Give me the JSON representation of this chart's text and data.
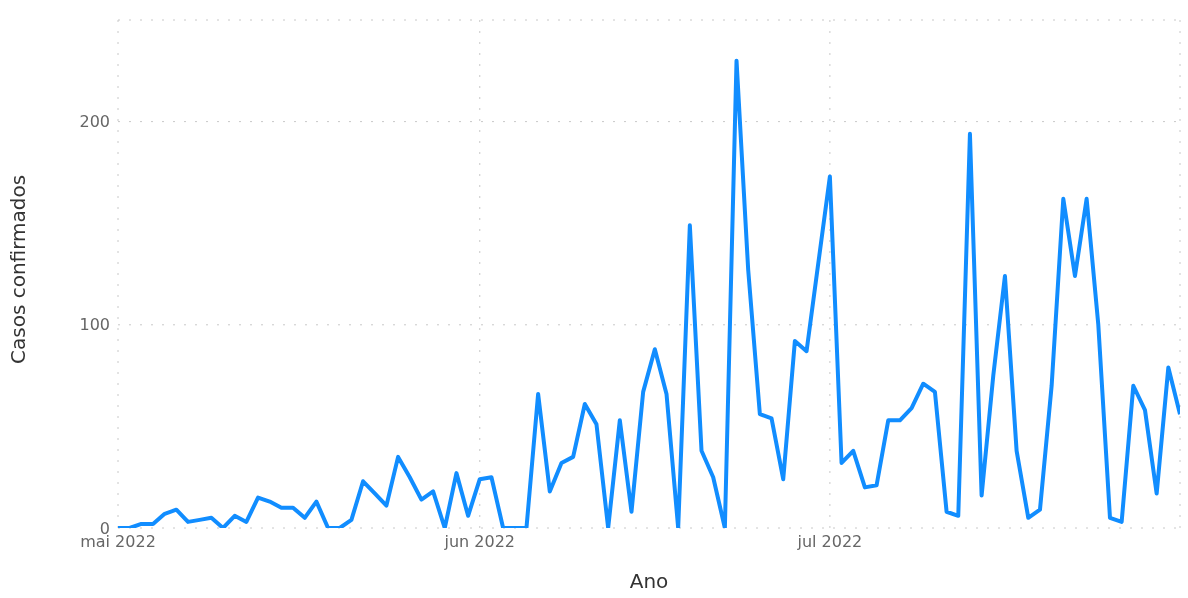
{
  "chart_data": {
    "type": "line",
    "xlabel": "Ano",
    "ylabel": "Casos confirmados",
    "x": [
      "2022-05-01",
      "2022-05-02",
      "2022-05-03",
      "2022-05-04",
      "2022-05-05",
      "2022-05-06",
      "2022-05-07",
      "2022-05-08",
      "2022-05-09",
      "2022-05-10",
      "2022-05-11",
      "2022-05-12",
      "2022-05-13",
      "2022-05-14",
      "2022-05-15",
      "2022-05-16",
      "2022-05-17",
      "2022-05-18",
      "2022-05-19",
      "2022-05-20",
      "2022-05-21",
      "2022-05-22",
      "2022-05-23",
      "2022-05-24",
      "2022-05-25",
      "2022-05-26",
      "2022-05-27",
      "2022-05-28",
      "2022-05-29",
      "2022-05-30",
      "2022-05-31",
      "2022-06-01",
      "2022-06-02",
      "2022-06-03",
      "2022-06-04",
      "2022-06-05",
      "2022-06-06",
      "2022-06-07",
      "2022-06-08",
      "2022-06-09",
      "2022-06-10",
      "2022-06-11",
      "2022-06-12",
      "2022-06-13",
      "2022-06-14",
      "2022-06-15",
      "2022-06-16",
      "2022-06-17",
      "2022-06-18",
      "2022-06-19",
      "2022-06-20",
      "2022-06-21",
      "2022-06-22",
      "2022-06-23",
      "2022-06-24",
      "2022-06-25",
      "2022-06-26",
      "2022-06-27",
      "2022-06-28",
      "2022-06-29",
      "2022-06-30",
      "2022-07-01",
      "2022-07-02",
      "2022-07-03",
      "2022-07-04",
      "2022-07-05",
      "2022-07-06",
      "2022-07-07",
      "2022-07-08",
      "2022-07-09",
      "2022-07-10",
      "2022-07-11",
      "2022-07-12",
      "2022-07-13",
      "2022-07-14",
      "2022-07-15",
      "2022-07-16",
      "2022-07-17",
      "2022-07-18",
      "2022-07-19",
      "2022-07-20",
      "2022-07-21",
      "2022-07-22",
      "2022-07-23",
      "2022-07-24",
      "2022-07-25",
      "2022-07-26",
      "2022-07-27",
      "2022-07-28",
      "2022-07-29",
      "2022-07-30",
      "2022-07-31"
    ],
    "series": [
      {
        "color": "#118dff",
        "values": [
          0,
          0,
          2,
          2,
          7,
          9,
          3,
          4,
          5,
          0,
          6,
          3,
          15,
          13,
          10,
          10,
          5,
          13,
          0,
          0,
          4,
          23,
          17,
          11,
          35,
          25,
          14,
          18,
          0,
          27,
          6,
          24,
          25,
          0,
          0,
          0,
          66,
          18,
          32,
          35,
          61,
          51,
          0,
          53,
          8,
          67,
          88,
          66,
          0,
          149,
          38,
          25,
          0,
          230,
          127,
          56,
          54,
          24,
          92,
          87,
          130,
          173,
          32,
          38,
          20,
          21,
          53,
          53,
          59,
          71,
          67,
          8,
          6,
          194,
          16,
          75,
          124,
          38,
          5,
          9,
          70,
          162,
          124,
          162,
          100,
          5,
          3,
          70,
          58,
          17,
          79,
          56
        ]
      }
    ],
    "xlim": [
      "2022-05-01",
      "2022-07-31"
    ],
    "xticks": [
      {
        "value": "2022-05-01",
        "label": "mai 2022"
      },
      {
        "value": "2022-06-01",
        "label": "jun 2022"
      },
      {
        "value": "2022-07-01",
        "label": "jul 2022"
      }
    ],
    "ylim": [
      0,
      250
    ],
    "yticks": [
      0,
      100,
      200
    ],
    "grid": true,
    "marker": "none",
    "line_style": "solid"
  }
}
